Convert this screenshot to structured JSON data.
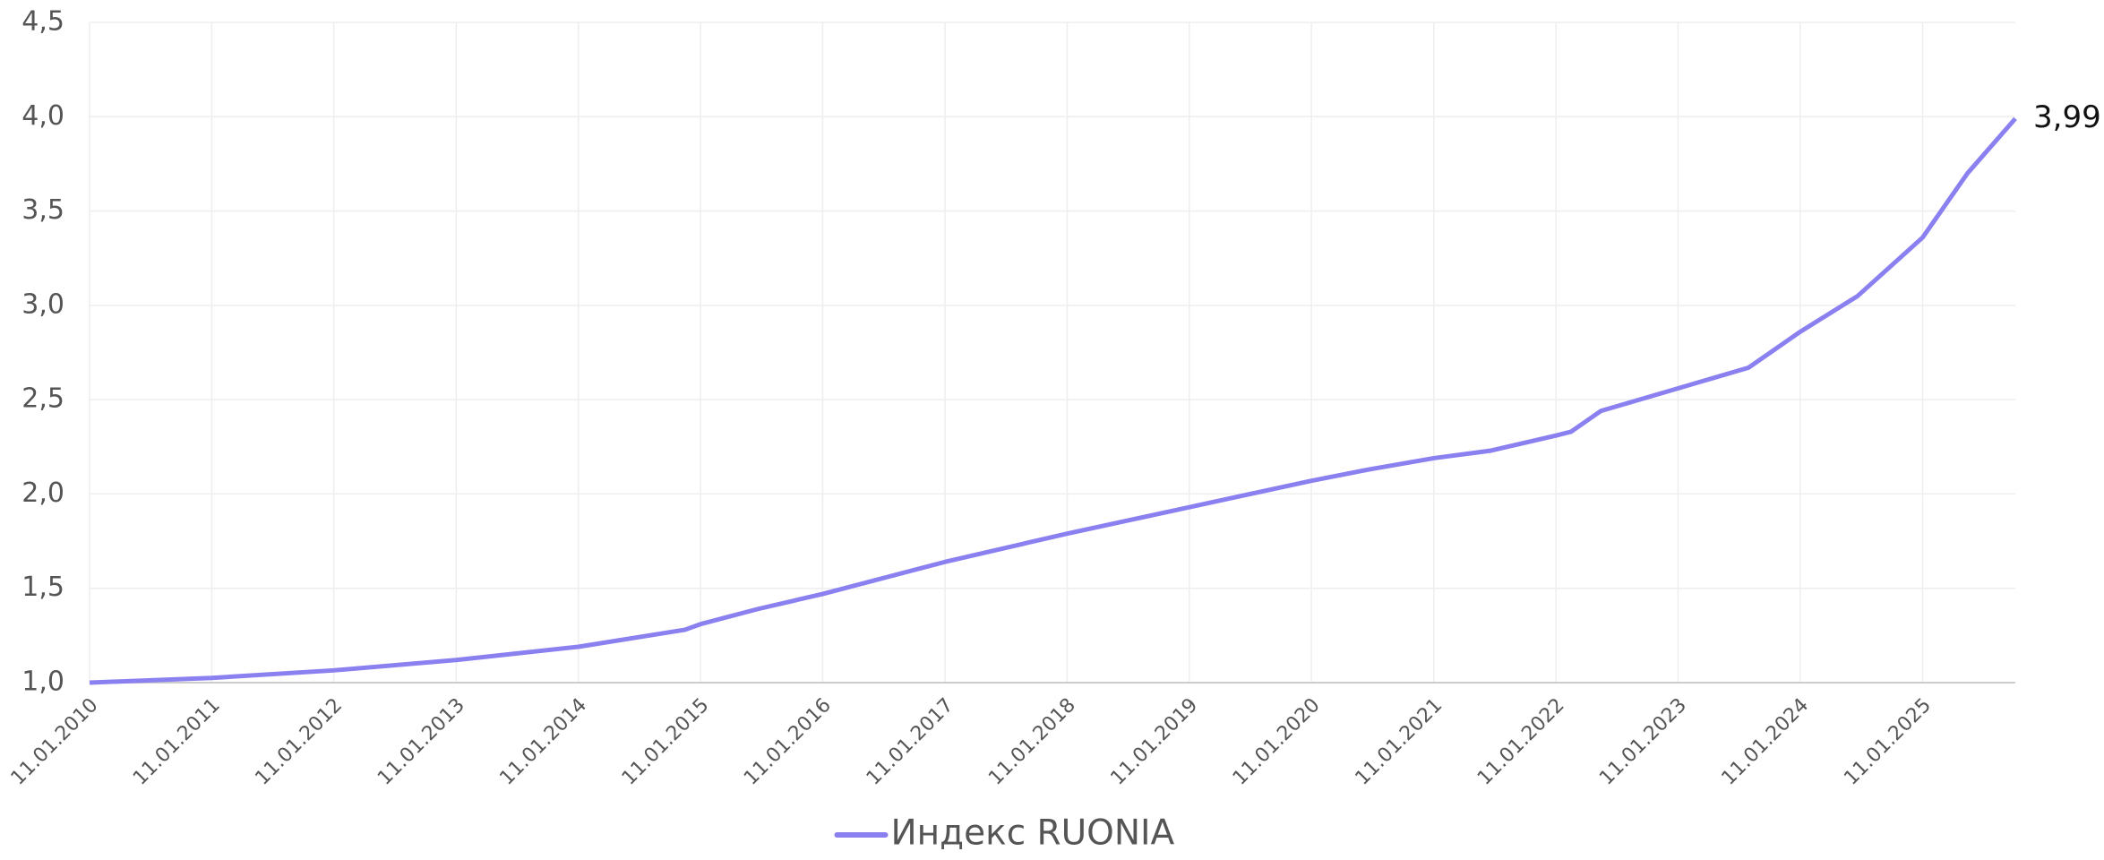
{
  "chart_data": {
    "type": "line",
    "x": [
      "2010-01-11",
      "2011-01-11",
      "2012-01-11",
      "2013-01-11",
      "2014-01-11",
      "2014-11-25",
      "2015-01-11",
      "2015-07-01",
      "2016-01-11",
      "2017-01-11",
      "2018-01-11",
      "2019-01-11",
      "2020-01-11",
      "2020-07-01",
      "2021-01-11",
      "2021-07-01",
      "2022-01-11",
      "2022-02-25",
      "2022-05-25",
      "2023-01-11",
      "2023-08-10",
      "2024-01-11",
      "2024-07-01",
      "2025-01-11",
      "2025-05-25",
      "2025-10-15"
    ],
    "series": [
      {
        "name": "Индекс RUONIA",
        "color": "#8b80f0",
        "values": [
          1.0,
          1.025,
          1.065,
          1.12,
          1.19,
          1.28,
          1.31,
          1.39,
          1.47,
          1.64,
          1.79,
          1.93,
          2.07,
          2.13,
          2.19,
          2.23,
          2.31,
          2.33,
          2.44,
          2.56,
          2.67,
          2.86,
          3.05,
          3.36,
          3.7,
          3.99
        ],
        "end_label": "3,99"
      }
    ],
    "xlim": [
      "2010-01-11",
      "2025-10-15"
    ],
    "xticks": [
      {
        "value": "2010-01-11",
        "label": "11.01.2010"
      },
      {
        "value": "2011-01-11",
        "label": "11.01.2011"
      },
      {
        "value": "2012-01-11",
        "label": "11.01.2012"
      },
      {
        "value": "2013-01-11",
        "label": "11.01.2013"
      },
      {
        "value": "2014-01-11",
        "label": "11.01.2014"
      },
      {
        "value": "2015-01-11",
        "label": "11.01.2015"
      },
      {
        "value": "2016-01-11",
        "label": "11.01.2016"
      },
      {
        "value": "2017-01-11",
        "label": "11.01.2017"
      },
      {
        "value": "2018-01-11",
        "label": "11.01.2018"
      },
      {
        "value": "2019-01-11",
        "label": "11.01.2019"
      },
      {
        "value": "2020-01-11",
        "label": "11.01.2020"
      },
      {
        "value": "2021-01-11",
        "label": "11.01.2021"
      },
      {
        "value": "2022-01-11",
        "label": "11.01.2022"
      },
      {
        "value": "2023-01-11",
        "label": "11.01.2023"
      },
      {
        "value": "2024-01-11",
        "label": "11.01.2024"
      },
      {
        "value": "2025-01-11",
        "label": "11.01.2025"
      }
    ],
    "ylim": [
      1,
      4.5
    ],
    "yticks": [
      {
        "value": 1,
        "label": "1,0"
      },
      {
        "value": 1.5,
        "label": "1,5"
      },
      {
        "value": 2,
        "label": "2,0"
      },
      {
        "value": 2.5,
        "label": "2,5"
      },
      {
        "value": 3,
        "label": "3,0"
      },
      {
        "value": 3.5,
        "label": "3,5"
      },
      {
        "value": 4,
        "label": "4,0"
      },
      {
        "value": 4.5,
        "label": "4,5"
      }
    ],
    "grid": true,
    "legend": "bottom"
  }
}
